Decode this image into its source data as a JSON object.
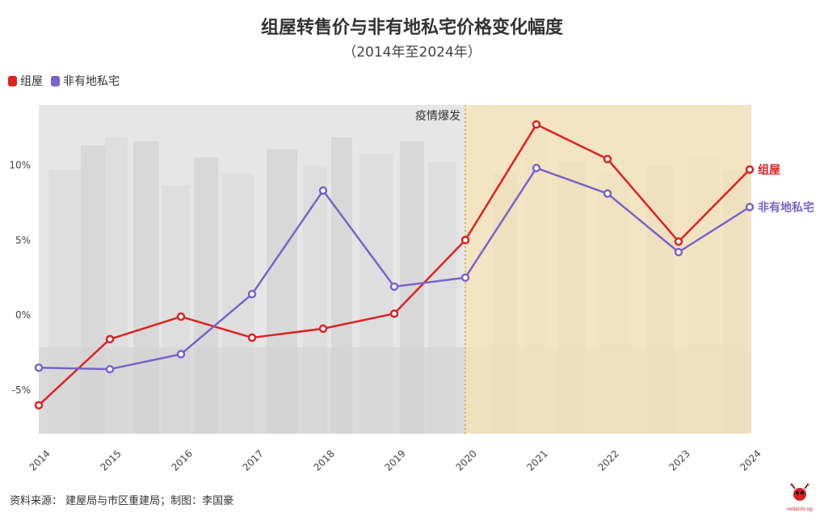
{
  "title": "组屋转售价与非有地私宅价格变化幅度",
  "subtitle": "（2014年至2024年）",
  "legend": [
    {
      "name": "组屋",
      "color": "#dd2222"
    },
    {
      "name": "非有地私宅",
      "color": "#7a63c9"
    }
  ],
  "annotation": "疫情爆发",
  "source": "资料来源： 建屋局与市区重建局；制图：李国豪",
  "logo_text": "redants.sg",
  "chart_data": {
    "type": "line",
    "x": [
      "2014",
      "2015",
      "2016",
      "2017",
      "2018",
      "2019",
      "2020",
      "2021",
      "2022",
      "2023",
      "2024"
    ],
    "series": [
      {
        "name": "组屋",
        "color": "#dd2222",
        "values": [
          -6.0,
          -1.6,
          -0.1,
          -1.5,
          -0.9,
          0.1,
          5.0,
          12.7,
          10.4,
          4.9,
          9.7
        ]
      },
      {
        "name": "非有地私宅",
        "color": "#7a63c9",
        "values": [
          -3.5,
          -3.6,
          -2.6,
          1.4,
          8.3,
          1.9,
          2.5,
          9.8,
          8.1,
          4.2,
          7.2
        ]
      }
    ],
    "y_ticks": [
      "10%",
      "5%",
      "0%",
      "-5%"
    ],
    "y_tick_values": [
      10,
      5,
      0,
      -5
    ],
    "ylim": [
      -7.9,
      14.0
    ],
    "highlight_from": "2020",
    "highlight_color": "#f7e3b8",
    "end_labels": [
      "组屋",
      "非有地私宅"
    ],
    "xlabel": "",
    "ylabel": "",
    "grid": false
  }
}
